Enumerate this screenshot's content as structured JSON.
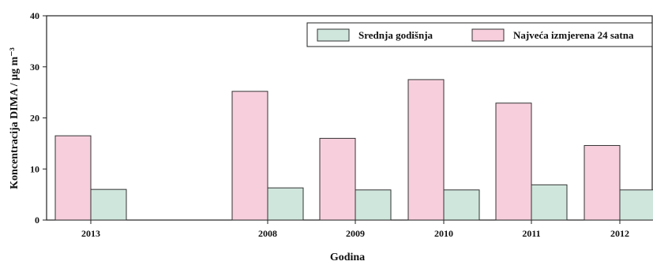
{
  "chart_data": {
    "type": "bar",
    "categories": [
      "2013",
      "2008",
      "2009",
      "2010",
      "2011",
      "2012"
    ],
    "series": [
      {
        "name": "Najveća izmjerena 24 satna",
        "color": "#f7cfdc",
        "values": [
          16.5,
          25.2,
          16.0,
          27.5,
          22.9,
          14.6
        ]
      },
      {
        "name": "Srednja godišnja",
        "color": "#cfe6dc",
        "values": [
          6.0,
          6.3,
          5.9,
          5.9,
          6.9,
          5.9
        ]
      }
    ],
    "xlabel": "Godina",
    "ylabel": "Koncentracija DIMA / μg m⁻³",
    "ylim": [
      0,
      40
    ],
    "yticks": [
      0,
      10,
      20,
      30,
      40
    ],
    "legend": {
      "position": "top-right",
      "items": [
        {
          "label": "Srednja godišnja",
          "color": "#cfe6dc"
        },
        {
          "label": "Najveća izmjerena 24 satna",
          "color": "#f7cfdc"
        }
      ]
    },
    "grid": false
  }
}
